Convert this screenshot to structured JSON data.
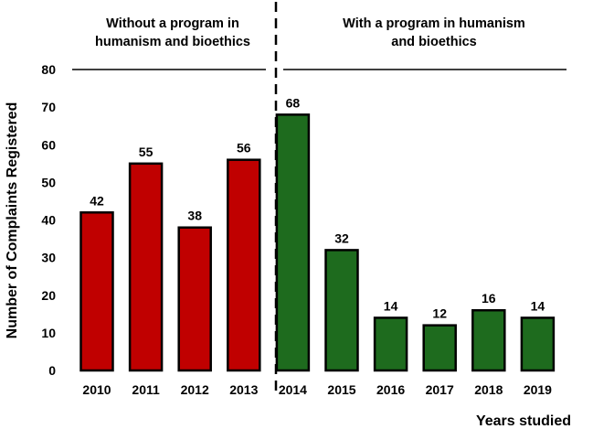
{
  "chart_data": {
    "type": "bar",
    "title": "",
    "xlabel": "Years studied",
    "ylabel": "Number of Complaints Registered",
    "ylim": [
      0,
      80
    ],
    "yticks": [
      0,
      10,
      20,
      30,
      40,
      50,
      60,
      70,
      80
    ],
    "grid": false,
    "categories": [
      "2010",
      "2011",
      "2012",
      "2013",
      "2014",
      "2015",
      "2016",
      "2017",
      "2018",
      "2019"
    ],
    "values": [
      42,
      55,
      38,
      56,
      68,
      32,
      14,
      12,
      16,
      14
    ],
    "groups": [
      {
        "name": "Without a program in humanism and bioethics",
        "label_lines": [
          "Without a program in",
          "humanism and bioethics"
        ],
        "categories": [
          "2010",
          "2011",
          "2012",
          "2013"
        ],
        "color": "#C00000"
      },
      {
        "name": "With a program in humanism and bioethics",
        "label_lines": [
          "With a program in humanism",
          "and bioethics"
        ],
        "categories": [
          "2014",
          "2015",
          "2016",
          "2017",
          "2018",
          "2019"
        ],
        "color": "#1E6B1E"
      }
    ],
    "separator": "dashed line between 2013 and 2014"
  }
}
